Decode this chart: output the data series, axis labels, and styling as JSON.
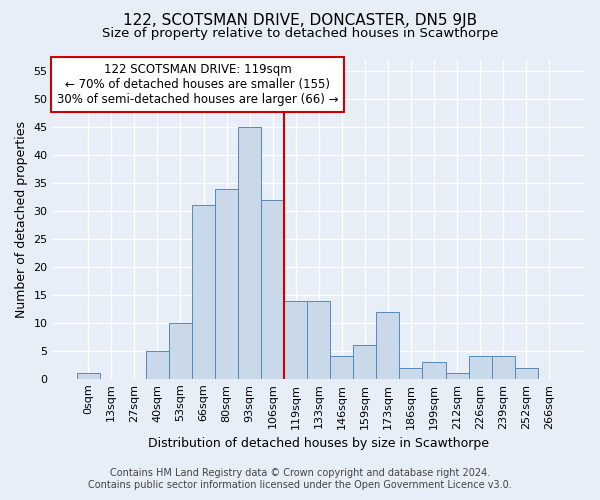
{
  "title": "122, SCOTSMAN DRIVE, DONCASTER, DN5 9JB",
  "subtitle": "Size of property relative to detached houses in Scawthorpe",
  "xlabel": "Distribution of detached houses by size in Scawthorpe",
  "ylabel": "Number of detached properties",
  "bar_labels": [
    "0sqm",
    "13sqm",
    "27sqm",
    "40sqm",
    "53sqm",
    "66sqm",
    "80sqm",
    "93sqm",
    "106sqm",
    "119sqm",
    "133sqm",
    "146sqm",
    "159sqm",
    "173sqm",
    "186sqm",
    "199sqm",
    "212sqm",
    "226sqm",
    "239sqm",
    "252sqm",
    "266sqm"
  ],
  "bar_values": [
    1,
    0,
    0,
    5,
    10,
    31,
    34,
    45,
    32,
    14,
    14,
    4,
    6,
    12,
    2,
    3,
    1,
    4,
    4,
    2,
    0
  ],
  "bar_color": "#c9d9ea",
  "bar_edge_color": "#5588bb",
  "bar_width": 1.0,
  "ylim": [
    0,
    57
  ],
  "yticks": [
    0,
    5,
    10,
    15,
    20,
    25,
    30,
    35,
    40,
    45,
    50,
    55
  ],
  "vline_x": 8.5,
  "vline_color": "#cc0000",
  "annotation_line1": "122 SCOTSMAN DRIVE: 119sqm",
  "annotation_line2": "← 70% of detached houses are smaller (155)",
  "annotation_line3": "30% of semi-detached houses are larger (66) →",
  "annotation_box_color": "#ffffff",
  "annotation_box_edge": "#cc0000",
  "footer": "Contains HM Land Registry data © Crown copyright and database right 2024.\nContains public sector information licensed under the Open Government Licence v3.0.",
  "bg_color": "#e8eef8",
  "grid_color": "#ffffff",
  "title_fontsize": 11,
  "subtitle_fontsize": 9.5,
  "axis_label_fontsize": 9,
  "tick_fontsize": 8,
  "annotation_fontsize": 8.5,
  "footer_fontsize": 7
}
